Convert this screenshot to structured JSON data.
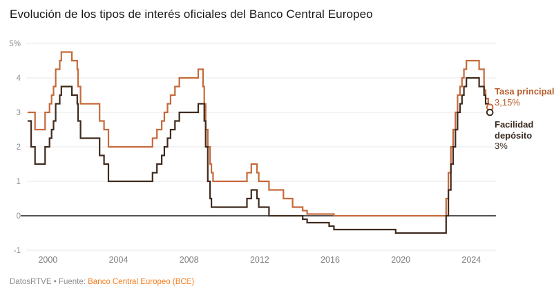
{
  "chart_data": {
    "type": "line",
    "step": true,
    "title": "Evolución de los tipos de interés oficiales del Banco Central Europeo",
    "xlabel": "",
    "ylabel": "",
    "x_domain": [
      1998.85,
      2025.4
    ],
    "x_end": 2025.05,
    "x_ticks": [
      2000,
      2004,
      2008,
      2012,
      2016,
      2020,
      2024
    ],
    "y_ticks": [
      {
        "label": "5%",
        "value": 5
      },
      {
        "label": "4",
        "value": 4
      },
      {
        "label": "3",
        "value": 3
      },
      {
        "label": "2",
        "value": 2
      },
      {
        "label": "1",
        "value": 1
      },
      {
        "label": "0",
        "value": 0
      },
      {
        "label": "-1",
        "value": -1
      }
    ],
    "grid": true,
    "grid_color": "#e7e7e7",
    "zero_line_color": "#1a1a1a",
    "axis_text_color": "#8f8f8f",
    "legend_position": "right-of-line-end",
    "series": [
      {
        "name": "Tasa principal",
        "value_label": "3,15%",
        "last_value": 3.15,
        "color": "#c6693a",
        "label_color": "#b85c2a",
        "points": [
          [
            1998.85,
            3.0
          ],
          [
            1999.27,
            2.5
          ],
          [
            1999.84,
            3.0
          ],
          [
            2000.09,
            3.25
          ],
          [
            2000.21,
            3.5
          ],
          [
            2000.32,
            3.75
          ],
          [
            2000.44,
            4.25
          ],
          [
            2000.67,
            4.5
          ],
          [
            2000.76,
            4.75
          ],
          [
            2001.36,
            4.5
          ],
          [
            2001.66,
            4.25
          ],
          [
            2001.71,
            3.75
          ],
          [
            2001.85,
            3.25
          ],
          [
            2002.93,
            2.75
          ],
          [
            2003.18,
            2.5
          ],
          [
            2003.43,
            2.0
          ],
          [
            2005.93,
            2.25
          ],
          [
            2006.18,
            2.5
          ],
          [
            2006.45,
            2.75
          ],
          [
            2006.6,
            3.0
          ],
          [
            2006.78,
            3.25
          ],
          [
            2006.95,
            3.5
          ],
          [
            2007.2,
            3.75
          ],
          [
            2007.45,
            4.0
          ],
          [
            2008.52,
            4.25
          ],
          [
            2008.79,
            3.75
          ],
          [
            2008.86,
            3.25
          ],
          [
            2008.94,
            2.5
          ],
          [
            2009.06,
            2.0
          ],
          [
            2009.19,
            1.5
          ],
          [
            2009.27,
            1.25
          ],
          [
            2009.36,
            1.0
          ],
          [
            2011.28,
            1.25
          ],
          [
            2011.53,
            1.5
          ],
          [
            2011.85,
            1.25
          ],
          [
            2011.95,
            1.0
          ],
          [
            2012.53,
            0.75
          ],
          [
            2013.35,
            0.5
          ],
          [
            2013.87,
            0.25
          ],
          [
            2014.44,
            0.15
          ],
          [
            2014.69,
            0.05
          ],
          [
            2016.21,
            0.0
          ],
          [
            2022.57,
            0.5
          ],
          [
            2022.7,
            1.25
          ],
          [
            2022.84,
            2.0
          ],
          [
            2022.97,
            2.5
          ],
          [
            2023.1,
            3.0
          ],
          [
            2023.22,
            3.5
          ],
          [
            2023.36,
            3.75
          ],
          [
            2023.47,
            4.0
          ],
          [
            2023.58,
            4.25
          ],
          [
            2023.72,
            4.5
          ],
          [
            2024.44,
            4.25
          ],
          [
            2024.72,
            3.65
          ],
          [
            2024.81,
            3.4
          ],
          [
            2024.96,
            3.15
          ]
        ]
      },
      {
        "name": "Facilidad depósito",
        "value_label": "3%",
        "last_value": 3.0,
        "color": "#3f2a1d",
        "label_color": "#3a2a20",
        "points": [
          [
            1998.85,
            2.75
          ],
          [
            1999.05,
            2.0
          ],
          [
            1999.27,
            1.5
          ],
          [
            1999.84,
            2.0
          ],
          [
            2000.09,
            2.25
          ],
          [
            2000.21,
            2.5
          ],
          [
            2000.32,
            2.75
          ],
          [
            2000.44,
            3.25
          ],
          [
            2000.67,
            3.5
          ],
          [
            2000.76,
            3.75
          ],
          [
            2001.36,
            3.5
          ],
          [
            2001.66,
            3.25
          ],
          [
            2001.71,
            2.75
          ],
          [
            2001.85,
            2.25
          ],
          [
            2002.93,
            1.75
          ],
          [
            2003.18,
            1.5
          ],
          [
            2003.43,
            1.0
          ],
          [
            2005.93,
            1.25
          ],
          [
            2006.18,
            1.5
          ],
          [
            2006.45,
            1.75
          ],
          [
            2006.6,
            2.0
          ],
          [
            2006.78,
            2.25
          ],
          [
            2006.95,
            2.5
          ],
          [
            2007.2,
            2.75
          ],
          [
            2007.45,
            3.0
          ],
          [
            2008.52,
            3.25
          ],
          [
            2008.86,
            2.75
          ],
          [
            2008.94,
            2.0
          ],
          [
            2009.06,
            1.0
          ],
          [
            2009.19,
            0.5
          ],
          [
            2009.27,
            0.25
          ],
          [
            2011.28,
            0.5
          ],
          [
            2011.53,
            0.75
          ],
          [
            2011.85,
            0.5
          ],
          [
            2011.95,
            0.25
          ],
          [
            2012.53,
            0.0
          ],
          [
            2014.44,
            -0.1
          ],
          [
            2014.69,
            -0.2
          ],
          [
            2015.94,
            -0.3
          ],
          [
            2016.21,
            -0.4
          ],
          [
            2019.71,
            -0.5
          ],
          [
            2022.57,
            0.0
          ],
          [
            2022.7,
            0.75
          ],
          [
            2022.84,
            1.5
          ],
          [
            2022.97,
            2.0
          ],
          [
            2023.1,
            2.5
          ],
          [
            2023.22,
            3.0
          ],
          [
            2023.36,
            3.25
          ],
          [
            2023.47,
            3.5
          ],
          [
            2023.58,
            3.75
          ],
          [
            2023.72,
            4.0
          ],
          [
            2024.44,
            3.75
          ],
          [
            2024.72,
            3.5
          ],
          [
            2024.81,
            3.25
          ],
          [
            2024.96,
            3.0
          ]
        ]
      }
    ]
  },
  "footer": {
    "credit": "DatosRTVE • Fuente: ",
    "source": "Banco Central Europeo (BCE)",
    "source_color": "#f57e20"
  }
}
